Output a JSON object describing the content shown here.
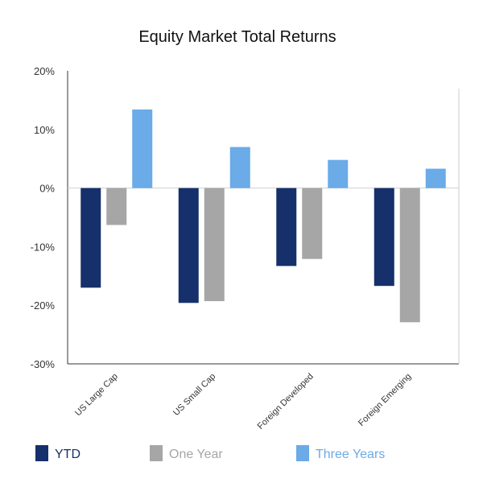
{
  "chart_data": {
    "type": "bar",
    "title": "Equity Market Total Returns",
    "categories": [
      "US Large Cap",
      "US Small Cap",
      "Foreign Developed",
      "Foreign Emerging"
    ],
    "series": [
      {
        "name": "YTD",
        "color": "#15306b",
        "values": [
          -17,
          -19.6,
          -13.3,
          -16.7
        ]
      },
      {
        "name": "One Year",
        "color": "#a6a6a6",
        "values": [
          -6.3,
          -19.3,
          -12.1,
          -22.9
        ]
      },
      {
        "name": "Three Years",
        "color": "#6aabe8",
        "values": [
          13.4,
          7.0,
          4.8,
          3.3
        ]
      }
    ],
    "ylim": [
      -30,
      20
    ],
    "yticks": [
      "20%",
      "10%",
      "0%",
      "-10%",
      "-20%",
      "-30%"
    ],
    "ytick_values": [
      20,
      10,
      0,
      -10,
      -20,
      -30
    ],
    "grid": false,
    "legend_position": "bottom"
  }
}
